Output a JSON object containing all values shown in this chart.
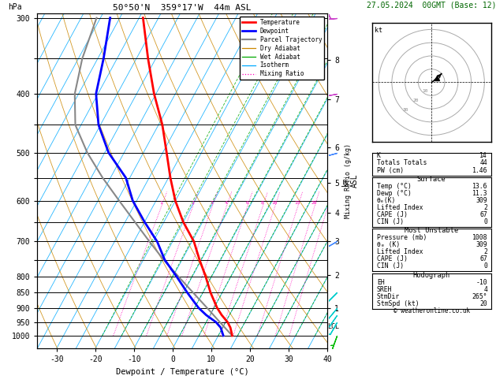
{
  "title_left": "50°50'N  359°17'W  44m ASL",
  "title_right": "27.05.2024  00GMT (Base: 12)",
  "xlabel": "Dewpoint / Temperature (°C)",
  "ylabel_left": "hPa",
  "bg_color": "#ffffff",
  "pressure_levels": [
    300,
    350,
    400,
    450,
    500,
    550,
    600,
    650,
    700,
    750,
    800,
    850,
    900,
    950,
    1000
  ],
  "pressure_ticks": [
    300,
    350,
    400,
    450,
    500,
    550,
    600,
    650,
    700,
    750,
    800,
    850,
    900,
    950,
    1000
  ],
  "pressure_labels": [
    "300",
    "",
    "400",
    "",
    "500",
    "",
    "600",
    "",
    "700",
    "",
    "800",
    "850",
    "900",
    "950",
    "1000"
  ],
  "temp_range": [
    -35,
    40
  ],
  "temp_ticks": [
    -30,
    -20,
    -10,
    0,
    10,
    20,
    30,
    40
  ],
  "km_ticks": [
    1,
    2,
    3,
    4,
    5,
    6,
    7,
    8
  ],
  "km_pressures": [
    900,
    795,
    700,
    628,
    560,
    490,
    408,
    352
  ],
  "lcl_pressure": 967,
  "temp_profile_p": [
    1000,
    970,
    950,
    925,
    900,
    850,
    800,
    750,
    700,
    650,
    600,
    550,
    500,
    450,
    400,
    350,
    300
  ],
  "temp_profile_t": [
    13.6,
    12.0,
    10.5,
    8.0,
    5.8,
    2.0,
    -1.5,
    -5.5,
    -9.5,
    -15.0,
    -20.0,
    -24.5,
    -29.0,
    -34.0,
    -40.5,
    -47.0,
    -54.0
  ],
  "dewp_profile_p": [
    1000,
    970,
    950,
    925,
    900,
    850,
    800,
    750,
    700,
    650,
    600,
    550,
    500,
    450,
    400,
    350,
    300
  ],
  "dewp_profile_t": [
    11.3,
    9.5,
    7.5,
    4.0,
    1.0,
    -4.0,
    -9.0,
    -14.5,
    -19.0,
    -25.0,
    -31.0,
    -36.0,
    -44.0,
    -50.5,
    -55.5,
    -58.5,
    -62.5
  ],
  "parcel_profile_p": [
    1000,
    950,
    900,
    850,
    800,
    750,
    700,
    650,
    600,
    550,
    500,
    450,
    400,
    350,
    300
  ],
  "parcel_profile_t": [
    13.6,
    8.5,
    3.2,
    -2.5,
    -8.5,
    -14.8,
    -21.0,
    -27.5,
    -34.5,
    -42.0,
    -49.5,
    -56.5,
    -61.0,
    -64.0,
    -66.0
  ],
  "mixing_ratio_vals": [
    1,
    2,
    3,
    4,
    6,
    8,
    10,
    15,
    20,
    25
  ],
  "stats": {
    "K": 14,
    "Totals Totals": 44,
    "PW (cm)": 1.46,
    "Surface_Temp": 13.6,
    "Surface_Dewp": 11.3,
    "Surface_theta_e": 309,
    "Surface_LI": 2,
    "Surface_CAPE": 67,
    "Surface_CIN": 0,
    "MU_Pressure": 1008,
    "MU_theta_e": 309,
    "MU_LI": 2,
    "MU_CAPE": 67,
    "MU_CIN": 0,
    "Hodo_EH": -10,
    "Hodo_SREH": 4,
    "Hodo_StmDir": 265,
    "Hodo_StmSpd": 20
  },
  "wind_barbs": [
    {
      "p": 1000,
      "spd": 5,
      "dir": 200,
      "color": "#00bb00"
    },
    {
      "p": 950,
      "spd": 8,
      "dir": 210,
      "color": "#00cccc"
    },
    {
      "p": 925,
      "spd": 8,
      "dir": 215,
      "color": "#00cccc"
    },
    {
      "p": 900,
      "spd": 8,
      "dir": 220,
      "color": "#00cccc"
    },
    {
      "p": 850,
      "spd": 10,
      "dir": 225,
      "color": "#00cccc"
    },
    {
      "p": 700,
      "spd": 18,
      "dir": 240,
      "color": "#4488ff"
    },
    {
      "p": 500,
      "spd": 22,
      "dir": 255,
      "color": "#4488ff"
    },
    {
      "p": 400,
      "spd": 30,
      "dir": 260,
      "color": "#cc44cc"
    },
    {
      "p": 300,
      "spd": 38,
      "dir": 265,
      "color": "#cc44cc"
    }
  ],
  "colors": {
    "temperature": "#ff0000",
    "dewpoint": "#0000ff",
    "parcel": "#888888",
    "dry_adiabat": "#cc8800",
    "wet_adiabat": "#00aa00",
    "isotherm": "#00aaff",
    "mixing_ratio": "#ff00bb"
  },
  "legend_items": [
    {
      "label": "Temperature",
      "color": "#ff0000",
      "ls": "-",
      "lw": 1.5
    },
    {
      "label": "Dewpoint",
      "color": "#0000ff",
      "ls": "-",
      "lw": 1.5
    },
    {
      "label": "Parcel Trajectory",
      "color": "#888888",
      "ls": "-",
      "lw": 1.2
    },
    {
      "label": "Dry Adiabat",
      "color": "#cc8800",
      "ls": "-",
      "lw": 0.7
    },
    {
      "label": "Wet Adiabat",
      "color": "#00aa00",
      "ls": "-",
      "lw": 0.7
    },
    {
      "label": "Isotherm",
      "color": "#00aaff",
      "ls": "-",
      "lw": 0.7
    },
    {
      "label": "Mixing Ratio",
      "color": "#ff00bb",
      "ls": ":.",
      "lw": 0.7
    }
  ]
}
